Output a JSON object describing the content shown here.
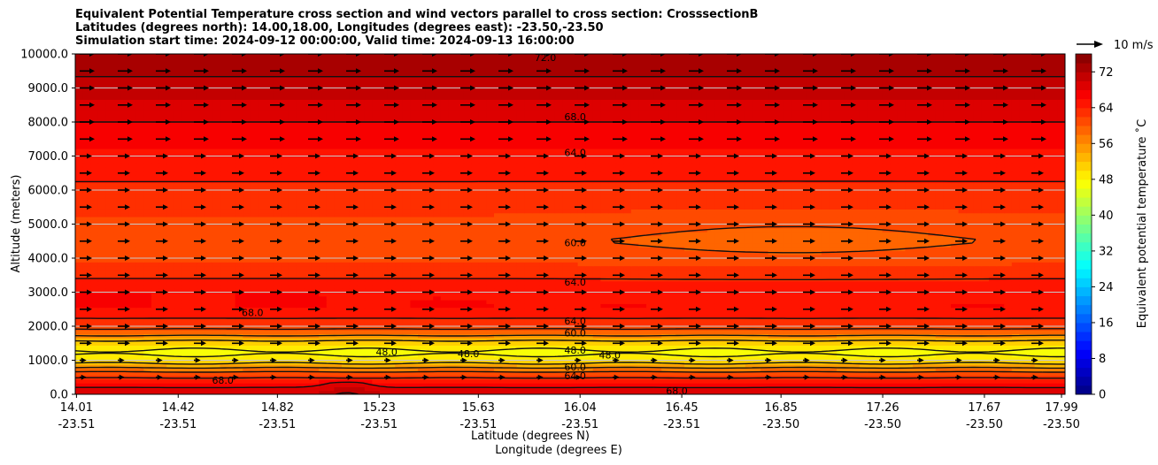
{
  "title_lines": [
    "Equivalent Potential Temperature cross section and wind vectors parallel to cross section: CrosssectionB",
    "Latitudes (degrees north): 14.00,18.00, Longitudes (degrees east): -23.50,-23.50",
    "Simulation start time: 2024-09-12 00:00:00, Valid time: 2024-09-13 16:00:00"
  ],
  "chart_data": {
    "type": "contour-cross-section",
    "title": "Equivalent Potential Temperature cross section and wind vectors parallel to cross section: CrosssectionB",
    "xlabel": "Latitude (degrees N)",
    "xlabel2": "Longitude (degrees E)",
    "ylabel": "Altitude (meters)",
    "ylim": [
      0,
      10000
    ],
    "yticks": [
      "0.0",
      "1000.0",
      "2000.0",
      "3000.0",
      "4000.0",
      "5000.0",
      "6000.0",
      "7000.0",
      "8000.0",
      "9000.0",
      "10000.0"
    ],
    "xticks_lat": [
      "14.01",
      "14.42",
      "14.82",
      "15.23",
      "15.63",
      "16.04",
      "16.45",
      "16.85",
      "17.26",
      "17.67",
      "17.99"
    ],
    "xticks_lon": [
      "-23.51",
      "-23.51",
      "-23.51",
      "-23.51",
      "-23.51",
      "-23.51",
      "-23.51",
      "-23.50",
      "-23.50",
      "-23.50",
      "-23.50"
    ],
    "colorbar": {
      "label": "Equivalent potential temperature ˚C",
      "range": [
        0,
        76
      ],
      "ticks": [
        "0",
        "8",
        "16",
        "24",
        "32",
        "40",
        "48",
        "56",
        "64",
        "72"
      ]
    },
    "quiver_key": "10 m/s",
    "contour_labels": [
      {
        "text": "72.0",
        "x": 15.9,
        "y": 9900
      },
      {
        "text": "68.0",
        "x": 16.02,
        "y": 8150
      },
      {
        "text": "64.0",
        "x": 16.02,
        "y": 7100
      },
      {
        "text": "60.0",
        "x": 16.02,
        "y": 4450
      },
      {
        "text": "64.0",
        "x": 16.02,
        "y": 3300
      },
      {
        "text": "64.0",
        "x": 16.02,
        "y": 2150
      },
      {
        "text": "60.0",
        "x": 16.02,
        "y": 1800
      },
      {
        "text": "48.0",
        "x": 16.02,
        "y": 1300
      },
      {
        "text": "60.0",
        "x": 16.02,
        "y": 800
      },
      {
        "text": "64.0",
        "x": 16.02,
        "y": 550
      },
      {
        "text": "68.0",
        "x": 14.6,
        "y": 420
      },
      {
        "text": "68.0",
        "x": 14.72,
        "y": 2400
      },
      {
        "text": "48.0",
        "x": 15.26,
        "y": 1250
      },
      {
        "text": "48.0",
        "x": 15.59,
        "y": 1200
      },
      {
        "text": "48.0",
        "x": 16.16,
        "y": 1150
      },
      {
        "text": "68.0",
        "x": 16.43,
        "y": 100
      }
    ],
    "theta_e_profile": {
      "altitude": [
        0,
        300,
        600,
        900,
        1200,
        1500,
        1800,
        2100,
        2500,
        3000,
        3500,
        4000,
        4500,
        5000,
        5500,
        6000,
        6500,
        7000,
        7500,
        8000,
        8500,
        9000,
        9500,
        10000
      ],
      "value": [
        70,
        67,
        62,
        52,
        47,
        50,
        58,
        63,
        66,
        66,
        63.5,
        61.5,
        60.5,
        61.5,
        62.5,
        63.5,
        64.5,
        65.5,
        66.5,
        68,
        69.5,
        71,
        72.5,
        74
      ]
    }
  }
}
